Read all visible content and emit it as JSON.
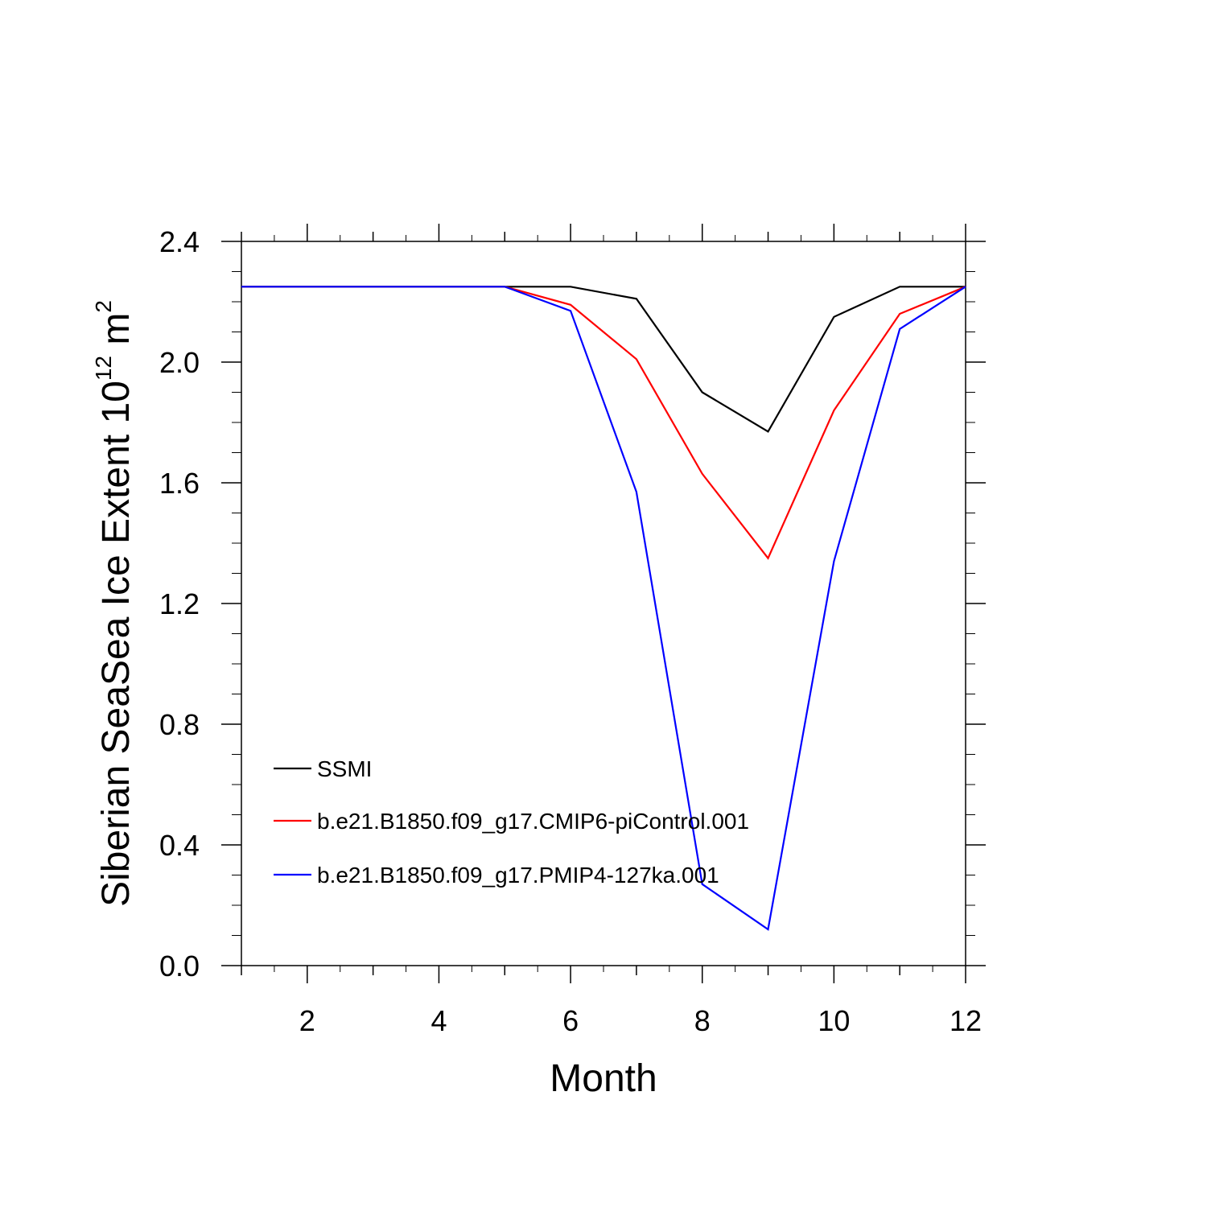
{
  "chart_data": {
    "type": "line",
    "title": "",
    "xlabel": "Month",
    "ylabel": {
      "prefix": "Siberian SeaSea Ice Extent 10",
      "exponent": "12",
      "unit_base": " m",
      "unit_exponent": "2"
    },
    "xlim": [
      1,
      12
    ],
    "ylim": [
      0,
      2.4
    ],
    "x_ticks": [
      2,
      4,
      6,
      8,
      10,
      12
    ],
    "x_tick_labels": [
      "2",
      "4",
      "6",
      "8",
      "10",
      "12"
    ],
    "y_ticks": [
      0,
      0.4,
      0.8,
      1.2,
      1.6,
      2.0,
      2.4
    ],
    "y_tick_labels": [
      "0.0",
      "0.4",
      "0.8",
      "1.2",
      "1.6",
      "2.0",
      "2.4"
    ],
    "grid": false,
    "legend_position": "lower-left",
    "x": [
      1,
      2,
      3,
      4,
      5,
      6,
      7,
      8,
      9,
      10,
      11,
      12
    ],
    "series": [
      {
        "name": "SSMI",
        "color": "#000000",
        "values": [
          2.25,
          2.25,
          2.25,
          2.25,
          2.25,
          2.25,
          2.21,
          1.9,
          1.77,
          2.15,
          2.25,
          2.25
        ]
      },
      {
        "name": "b.e21.B1850.f09_g17.CMIP6-piControl.001",
        "color": "#ff0000",
        "values": [
          2.25,
          2.25,
          2.25,
          2.25,
          2.25,
          2.19,
          2.01,
          1.63,
          1.35,
          1.84,
          2.16,
          2.25
        ]
      },
      {
        "name": "b.e21.B1850.f09_g17.PMIP4-127ka.001",
        "color": "#0000ff",
        "values": [
          2.25,
          2.25,
          2.25,
          2.25,
          2.25,
          2.17,
          1.57,
          0.27,
          0.12,
          1.34,
          2.11,
          2.25
        ]
      }
    ]
  }
}
